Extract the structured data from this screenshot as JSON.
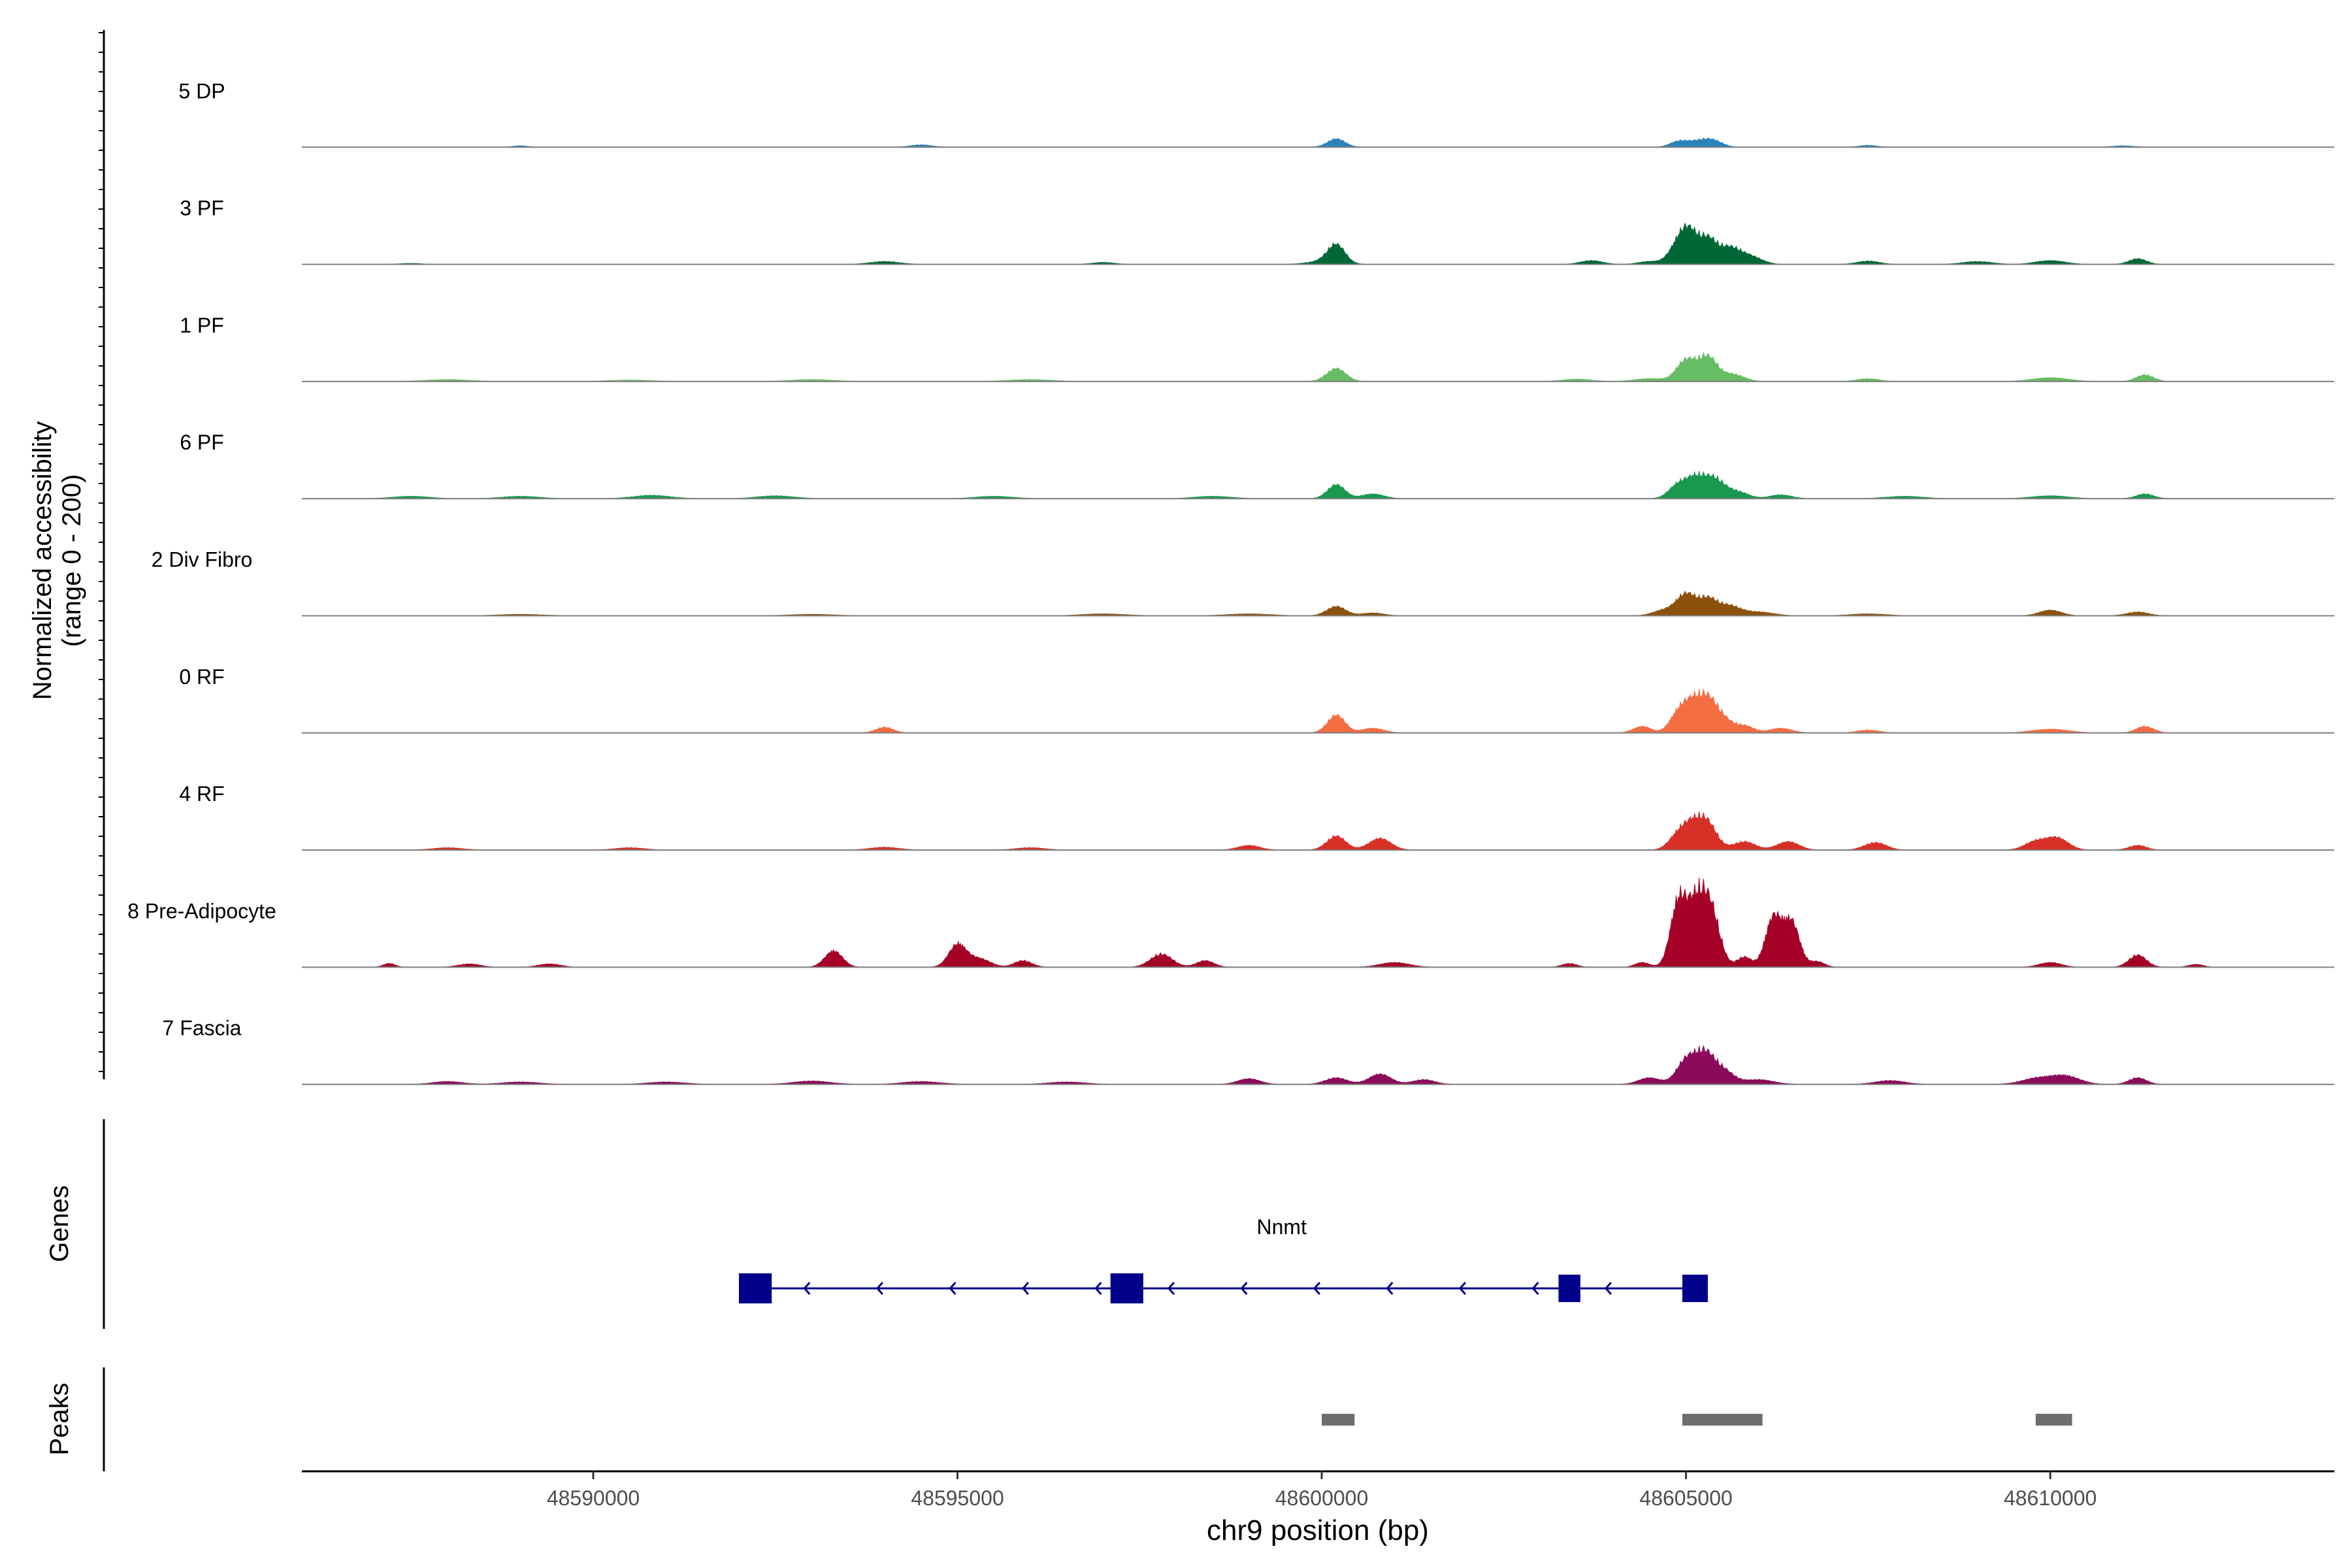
{
  "chart_data": {
    "type": "area",
    "title": "",
    "ylabel_line1": "Normalized accessibility",
    "ylabel_line2": "(range 0 - 200)",
    "ylim": [
      0,
      200
    ],
    "xlabel": "chr9 position (bp)",
    "xlim": [
      48586000,
      48613900
    ],
    "xticks": [
      48590000,
      48595000,
      48600000,
      48605000,
      48610000
    ],
    "xtick_labels": [
      "48590000",
      "48595000",
      "48600000",
      "48605000",
      "48610000"
    ],
    "tracks": [
      {
        "name": "5 DP",
        "color": "#2b83ba",
        "peaks": [
          [
            48589000,
            3,
            100
          ],
          [
            48594500,
            5,
            150
          ],
          [
            48600200,
            18,
            120
          ],
          [
            48604900,
            12,
            120
          ],
          [
            48605200,
            14,
            150
          ],
          [
            48605400,
            10,
            120
          ],
          [
            48607500,
            4,
            120
          ],
          [
            48611000,
            3,
            150
          ]
        ]
      },
      {
        "name": "3 PF",
        "color": "#006837",
        "peaks": [
          [
            48587500,
            2,
            150
          ],
          [
            48594000,
            6,
            200
          ],
          [
            48597000,
            4,
            150
          ],
          [
            48600000,
            6,
            200
          ],
          [
            48600200,
            40,
            120
          ],
          [
            48603700,
            8,
            150
          ],
          [
            48604500,
            6,
            150
          ],
          [
            48604900,
            40,
            130
          ],
          [
            48605050,
            55,
            120
          ],
          [
            48605300,
            50,
            120
          ],
          [
            48605600,
            35,
            150
          ],
          [
            48605900,
            15,
            150
          ],
          [
            48607500,
            7,
            150
          ],
          [
            48609000,
            6,
            200
          ],
          [
            48610000,
            8,
            200
          ],
          [
            48611200,
            12,
            120
          ]
        ]
      },
      {
        "name": "1 PF",
        "color": "#66bd63",
        "peaks": [
          [
            48588000,
            4,
            300
          ],
          [
            48590500,
            3,
            300
          ],
          [
            48593000,
            4,
            300
          ],
          [
            48596000,
            4,
            300
          ],
          [
            48600200,
            28,
            130
          ],
          [
            48603500,
            5,
            200
          ],
          [
            48604500,
            6,
            200
          ],
          [
            48605000,
            45,
            130
          ],
          [
            48605300,
            52,
            130
          ],
          [
            48605650,
            15,
            150
          ],
          [
            48607500,
            6,
            150
          ],
          [
            48610000,
            8,
            250
          ],
          [
            48611300,
            14,
            120
          ]
        ]
      },
      {
        "name": "6 PF",
        "color": "#1a9850",
        "peaks": [
          [
            48587500,
            5,
            250
          ],
          [
            48589000,
            5,
            250
          ],
          [
            48590800,
            7,
            250
          ],
          [
            48592500,
            6,
            250
          ],
          [
            48595500,
            5,
            250
          ],
          [
            48598500,
            5,
            250
          ],
          [
            48600200,
            30,
            120
          ],
          [
            48600700,
            10,
            150
          ],
          [
            48604900,
            30,
            130
          ],
          [
            48605150,
            42,
            130
          ],
          [
            48605400,
            38,
            130
          ],
          [
            48605700,
            15,
            150
          ],
          [
            48606300,
            8,
            150
          ],
          [
            48608000,
            5,
            250
          ],
          [
            48610000,
            6,
            250
          ],
          [
            48611300,
            10,
            120
          ]
        ]
      },
      {
        "name": "2 Div Fibro",
        "color": "#8c510a",
        "peaks": [
          [
            48589000,
            3,
            300
          ],
          [
            48593000,
            3,
            300
          ],
          [
            48597000,
            4,
            300
          ],
          [
            48599000,
            4,
            300
          ],
          [
            48600200,
            20,
            130
          ],
          [
            48600700,
            6,
            150
          ],
          [
            48604700,
            12,
            150
          ],
          [
            48605000,
            45,
            130
          ],
          [
            48605300,
            35,
            130
          ],
          [
            48605600,
            20,
            150
          ],
          [
            48606000,
            8,
            200
          ],
          [
            48607500,
            4,
            250
          ],
          [
            48610000,
            12,
            150
          ],
          [
            48611200,
            8,
            150
          ]
        ]
      },
      {
        "name": "0 RF",
        "color": "#f46d43",
        "peaks": [
          [
            48594000,
            12,
            120
          ],
          [
            48600200,
            38,
            120
          ],
          [
            48600700,
            10,
            150
          ],
          [
            48604400,
            14,
            120
          ],
          [
            48604900,
            42,
            120
          ],
          [
            48605100,
            55,
            120
          ],
          [
            48605300,
            60,
            120
          ],
          [
            48605500,
            28,
            130
          ],
          [
            48605800,
            15,
            130
          ],
          [
            48606300,
            10,
            150
          ],
          [
            48607500,
            6,
            150
          ],
          [
            48610000,
            8,
            250
          ],
          [
            48611300,
            14,
            120
          ]
        ]
      },
      {
        "name": "4 RF",
        "color": "#d73027",
        "peaks": [
          [
            48588000,
            5,
            200
          ],
          [
            48590500,
            5,
            200
          ],
          [
            48594000,
            6,
            200
          ],
          [
            48596000,
            5,
            200
          ],
          [
            48599000,
            10,
            150
          ],
          [
            48600200,
            30,
            130
          ],
          [
            48600800,
            25,
            150
          ],
          [
            48604900,
            32,
            130
          ],
          [
            48605100,
            45,
            130
          ],
          [
            48605300,
            52,
            130
          ],
          [
            48605800,
            18,
            150
          ],
          [
            48606400,
            18,
            150
          ],
          [
            48607600,
            16,
            150
          ],
          [
            48609800,
            18,
            150
          ],
          [
            48610100,
            25,
            150
          ],
          [
            48611200,
            10,
            120
          ]
        ]
      },
      {
        "name": "8 Pre-Adipocyte",
        "color": "#a50026",
        "peaks": [
          [
            48587200,
            8,
            80
          ],
          [
            48588300,
            7,
            150
          ],
          [
            48589400,
            7,
            150
          ],
          [
            48593300,
            35,
            120
          ],
          [
            48595000,
            48,
            120
          ],
          [
            48595300,
            18,
            150
          ],
          [
            48595900,
            14,
            120
          ],
          [
            48597800,
            28,
            150
          ],
          [
            48598400,
            14,
            120
          ],
          [
            48601000,
            10,
            200
          ],
          [
            48603400,
            8,
            100
          ],
          [
            48604400,
            10,
            100
          ],
          [
            48604900,
            140,
            110
          ],
          [
            48605150,
            130,
            120
          ],
          [
            48605350,
            110,
            120
          ],
          [
            48605800,
            22,
            100
          ],
          [
            48606200,
            105,
            110
          ],
          [
            48606450,
            95,
            110
          ],
          [
            48606800,
            12,
            100
          ],
          [
            48610000,
            10,
            150
          ],
          [
            48611200,
            26,
            120
          ],
          [
            48612000,
            6,
            100
          ]
        ]
      },
      {
        "name": "7 Fascia",
        "color": "#8b0b5a",
        "peaks": [
          [
            48588000,
            6,
            200
          ],
          [
            48589000,
            5,
            250
          ],
          [
            48591000,
            5,
            250
          ],
          [
            48593000,
            7,
            250
          ],
          [
            48594500,
            6,
            250
          ],
          [
            48596500,
            5,
            250
          ],
          [
            48599000,
            12,
            150
          ],
          [
            48600200,
            14,
            150
          ],
          [
            48600800,
            22,
            150
          ],
          [
            48601400,
            10,
            150
          ],
          [
            48604500,
            14,
            150
          ],
          [
            48605000,
            50,
            130
          ],
          [
            48605250,
            60,
            130
          ],
          [
            48605500,
            30,
            150
          ],
          [
            48606000,
            10,
            200
          ],
          [
            48607800,
            8,
            200
          ],
          [
            48609800,
            12,
            200
          ],
          [
            48610200,
            18,
            200
          ],
          [
            48611200,
            14,
            120
          ]
        ]
      }
    ],
    "genes_label": "Genes",
    "gene": {
      "name": "Nnmt",
      "start": 48592000,
      "end": 48605100,
      "strand": "-",
      "exons": [
        [
          48592000,
          48592450
        ],
        [
          48597100,
          48597550
        ],
        [
          48603250,
          48603550
        ],
        [
          48604950,
          48605300
        ]
      ]
    },
    "peaks_label": "Peaks",
    "peak_regions": [
      [
        48600000,
        48600450
      ],
      [
        48604950,
        48606050
      ],
      [
        48609800,
        48610300
      ]
    ]
  },
  "colors": {
    "baseline": "#7f7f7f",
    "gene": "#00008b",
    "peak": "#6e6e6e",
    "axis": "#000000",
    "tick_label": "#4d4d4d"
  }
}
